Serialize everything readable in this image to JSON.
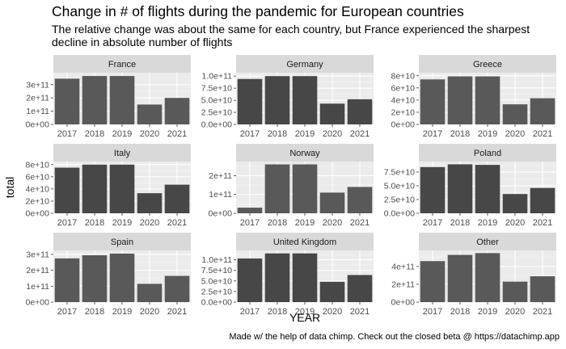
{
  "chart_data": {
    "type": "bar",
    "title": "Change in # of flights during the pandemic for European countries",
    "subtitle": "The relative change was about the same for each country, but France experienced the sharpest decline in absolute number of flights",
    "caption": "Made w/ the help of data chimp. Check out the closed beta @ https://datachimp.app",
    "xlabel": "YEAR",
    "ylabel": "total",
    "categories": [
      "2017",
      "2018",
      "2019",
      "2020",
      "2021"
    ],
    "grid": true,
    "bar_colors": [
      "#595959",
      "#474747"
    ],
    "panels": [
      {
        "name": "France",
        "fill": "#595959",
        "values": [
          345000000000.0,
          365000000000.0,
          365000000000.0,
          150000000000.0,
          200000000000.0
        ],
        "ylim": [
          0,
          390000000000.0
        ],
        "yticks": [
          0,
          100000000000.0,
          200000000000.0,
          300000000000.0
        ],
        "yticklabels": [
          "0e+00",
          "1e+11",
          "2e+11",
          "3e+11"
        ]
      },
      {
        "name": "Germany",
        "fill": "#474747",
        "values": [
          94000000000.0,
          100000000000.0,
          100000000000.0,
          43000000000.0,
          52000000000.0
        ],
        "ylim": [
          0,
          107000000000.0
        ],
        "yticks": [
          0,
          25000000000.0,
          50000000000.0,
          75000000000.0,
          100000000000.0
        ],
        "yticklabels": [
          "0.0e+00",
          "2.5e+10",
          "5.0e+10",
          "7.5e+10",
          "1.0e+11"
        ]
      },
      {
        "name": "Greece",
        "fill": "#595959",
        "values": [
          74000000000.0,
          79000000000.0,
          79000000000.0,
          33000000000.0,
          43000000000.0
        ],
        "ylim": [
          0,
          85000000000.0
        ],
        "yticks": [
          0,
          20000000000.0,
          40000000000.0,
          60000000000.0,
          80000000000.0
        ],
        "yticklabels": [
          "0e+00",
          "2e+10",
          "4e+10",
          "6e+10",
          "8e+10"
        ]
      },
      {
        "name": "Italy",
        "fill": "#474747",
        "values": [
          75000000000.0,
          80000000000.0,
          80000000000.0,
          33000000000.0,
          47000000000.0
        ],
        "ylim": [
          0,
          85000000000.0
        ],
        "yticks": [
          0,
          20000000000.0,
          40000000000.0,
          60000000000.0,
          80000000000.0
        ],
        "yticklabels": [
          "0e+00",
          "2e+10",
          "4e+10",
          "6e+10",
          "8e+10"
        ]
      },
      {
        "name": "Norway",
        "fill": "#595959",
        "values": [
          30000000000.0,
          260000000000.0,
          260000000000.0,
          110000000000.0,
          140000000000.0
        ],
        "ylim": [
          0,
          275000000000.0
        ],
        "yticks": [
          0,
          100000000000.0,
          200000000000.0
        ],
        "yticklabels": [
          "0e+00",
          "1e+11",
          "2e+11"
        ]
      },
      {
        "name": "Poland",
        "fill": "#474747",
        "values": [
          84000000000.0,
          89000000000.0,
          88000000000.0,
          35000000000.0,
          46000000000.0
        ],
        "ylim": [
          0,
          94000000000.0
        ],
        "yticks": [
          0,
          25000000000.0,
          50000000000.0,
          75000000000.0
        ],
        "yticklabels": [
          "0.0e+00",
          "2.5e+10",
          "5.0e+10",
          "7.5e+10"
        ]
      },
      {
        "name": "Spain",
        "fill": "#595959",
        "values": [
          275000000000.0,
          295000000000.0,
          305000000000.0,
          115000000000.0,
          165000000000.0
        ],
        "ylim": [
          0,
          325000000000.0
        ],
        "yticks": [
          0,
          100000000000.0,
          200000000000.0,
          300000000000.0
        ],
        "yticklabels": [
          "0e+00",
          "1e+11",
          "2e+11",
          "3e+11"
        ]
      },
      {
        "name": "United Kingdom",
        "fill": "#474747",
        "values": [
          103000000000.0,
          115000000000.0,
          115000000000.0,
          48000000000.0,
          64000000000.0
        ],
        "ylim": [
          0,
          122000000000.0
        ],
        "yticks": [
          0,
          25000000000.0,
          50000000000.0,
          75000000000.0,
          100000000000.0
        ],
        "yticklabels": [
          "0.0e+00",
          "2.5e+10",
          "5.0e+10",
          "7.5e+10",
          "1.0e+11"
        ]
      },
      {
        "name": "Other",
        "fill": "#595959",
        "values": [
          460000000000.0,
          530000000000.0,
          550000000000.0,
          230000000000.0,
          290000000000.0
        ],
        "ylim": [
          0,
          580000000000.0
        ],
        "yticks": [
          0,
          200000000000.0,
          400000000000.0
        ],
        "yticklabels": [
          "0e+00",
          "2e+11",
          "4e+11"
        ]
      }
    ]
  }
}
